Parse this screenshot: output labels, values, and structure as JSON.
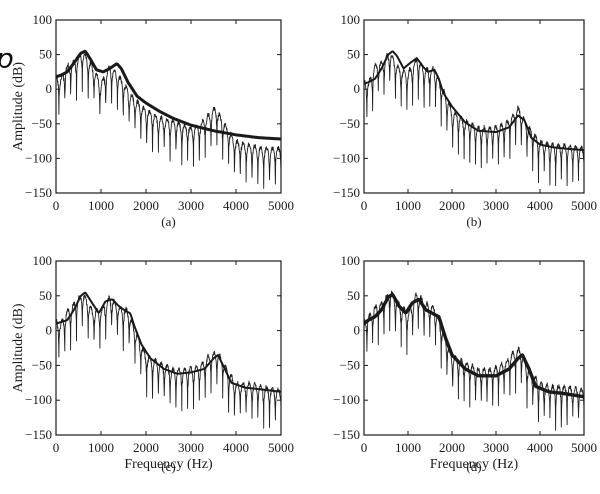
{
  "figure": {
    "stray_glyph": "p"
  },
  "chart_data": [
    {
      "type": "line",
      "caption": "(a)",
      "xlabel": "",
      "ylabel": "Amplitude (dB)",
      "xlim": [
        0,
        5000
      ],
      "ylim": [
        -150,
        100
      ],
      "xticks": [
        0,
        1000,
        2000,
        3000,
        4000,
        5000
      ],
      "yticks": [
        -150,
        -100,
        -50,
        0,
        50,
        100
      ],
      "series": [
        {
          "role": "spectrum",
          "x": [
            0,
            100,
            250,
            400,
            600,
            800,
            1000,
            1200,
            1350,
            1500,
            1700,
            2000,
            2300,
            2600,
            2800,
            3000,
            3200,
            3400,
            3550,
            3700,
            4000,
            4300,
            4600,
            5000
          ],
          "y": [
            10,
            5,
            25,
            30,
            45,
            25,
            0,
            25,
            15,
            0,
            -20,
            -40,
            -50,
            -55,
            -60,
            -65,
            -60,
            -45,
            -35,
            -55,
            -85,
            -90,
            -95,
            -95
          ]
        },
        {
          "role": "envelope",
          "x": [
            0,
            100,
            250,
            400,
            550,
            650,
            750,
            900,
            1050,
            1200,
            1350,
            1450,
            1600,
            1800,
            2000,
            2300,
            2600,
            3000,
            3500,
            4000,
            4500,
            5000
          ],
          "y": [
            18,
            20,
            25,
            38,
            52,
            55,
            45,
            28,
            25,
            30,
            37,
            30,
            10,
            -10,
            -20,
            -32,
            -42,
            -52,
            -60,
            -66,
            -70,
            -72
          ]
        }
      ]
    },
    {
      "type": "line",
      "caption": "(b)",
      "xlabel": "",
      "ylabel": "",
      "xlim": [
        0,
        5000
      ],
      "ylim": [
        -150,
        100
      ],
      "xticks": [
        0,
        1000,
        2000,
        3000,
        4000,
        5000
      ],
      "yticks": [
        -150,
        -100,
        -50,
        0,
        50,
        100
      ],
      "series": [
        {
          "role": "spectrum",
          "x": [
            0,
            100,
            250,
            400,
            600,
            800,
            1000,
            1200,
            1400,
            1600,
            1800,
            2000,
            2300,
            2600,
            2900,
            3200,
            3400,
            3500,
            3700,
            4000,
            4300,
            4600,
            5000
          ],
          "y": [
            5,
            0,
            25,
            30,
            45,
            20,
            15,
            35,
            20,
            20,
            -10,
            -40,
            -55,
            -65,
            -65,
            -60,
            -45,
            -35,
            -60,
            -85,
            -90,
            -90,
            -95
          ]
        },
        {
          "role": "envelope",
          "x": [
            0,
            100,
            250,
            400,
            550,
            650,
            750,
            900,
            1050,
            1200,
            1350,
            1450,
            1600,
            1700,
            1800,
            2000,
            2300,
            2600,
            3000,
            3300,
            3500,
            3650,
            3800,
            4000,
            4300,
            4600,
            5000
          ],
          "y": [
            8,
            10,
            15,
            30,
            50,
            55,
            48,
            30,
            38,
            45,
            32,
            25,
            28,
            15,
            -5,
            -25,
            -48,
            -60,
            -62,
            -55,
            -38,
            -45,
            -70,
            -80,
            -84,
            -86,
            -88
          ]
        }
      ]
    },
    {
      "type": "line",
      "caption": "(c)",
      "xlabel": "Frequency (Hz)",
      "ylabel": "Amplitude (dB)",
      "xlim": [
        0,
        5000
      ],
      "ylim": [
        -150,
        100
      ],
      "xticks": [
        0,
        1000,
        2000,
        3000,
        4000,
        5000
      ],
      "yticks": [
        -150,
        -100,
        -50,
        0,
        50,
        100
      ],
      "series": [
        {
          "role": "spectrum",
          "x": [
            0,
            100,
            250,
            400,
            600,
            800,
            1000,
            1200,
            1400,
            1600,
            1800,
            2000,
            2300,
            2600,
            2900,
            3200,
            3400,
            3600,
            3800,
            4000,
            4300,
            4600,
            5000
          ],
          "y": [
            5,
            0,
            20,
            30,
            45,
            20,
            20,
            40,
            25,
            20,
            -15,
            -45,
            -55,
            -65,
            -65,
            -60,
            -45,
            -40,
            -65,
            -85,
            -85,
            -90,
            -95
          ]
        },
        {
          "role": "envelope",
          "x": [
            0,
            100,
            250,
            400,
            550,
            650,
            800,
            950,
            1100,
            1250,
            1400,
            1550,
            1650,
            1750,
            1900,
            2100,
            2400,
            2700,
            3000,
            3300,
            3500,
            3600,
            3750,
            3900,
            4200,
            4500,
            5000
          ],
          "y": [
            10,
            12,
            15,
            30,
            50,
            55,
            40,
            25,
            42,
            45,
            35,
            28,
            25,
            5,
            -20,
            -40,
            -55,
            -62,
            -60,
            -55,
            -40,
            -35,
            -55,
            -75,
            -82,
            -84,
            -88
          ]
        }
      ]
    },
    {
      "type": "line",
      "caption": "(d)",
      "xlabel": "Frequency (Hz)",
      "ylabel": "",
      "xlim": [
        0,
        5000
      ],
      "ylim": [
        -150,
        100
      ],
      "xticks": [
        0,
        1000,
        2000,
        3000,
        4000,
        5000
      ],
      "yticks": [
        -150,
        -100,
        -50,
        0,
        50,
        100
      ],
      "series": [
        {
          "role": "spectrum",
          "x": [
            0,
            100,
            250,
            400,
            600,
            800,
            1000,
            1200,
            1400,
            1600,
            1800,
            2000,
            2300,
            2600,
            2900,
            3200,
            3400,
            3550,
            3700,
            4000,
            4300,
            4600,
            5000
          ],
          "y": [
            5,
            10,
            25,
            30,
            50,
            30,
            15,
            45,
            30,
            25,
            -10,
            -45,
            -55,
            -65,
            -65,
            -55,
            -40,
            -35,
            -60,
            -85,
            -90,
            -90,
            -95
          ]
        },
        {
          "role": "envelope",
          "x": [
            0,
            100,
            250,
            400,
            550,
            650,
            800,
            950,
            1100,
            1250,
            1400,
            1550,
            1700,
            1850,
            2000,
            2300,
            2600,
            3000,
            3300,
            3500,
            3600,
            3750,
            3900,
            4200,
            4500,
            5000
          ],
          "y": [
            10,
            15,
            20,
            30,
            48,
            52,
            35,
            25,
            40,
            45,
            30,
            25,
            20,
            -10,
            -35,
            -55,
            -65,
            -65,
            -55,
            -40,
            -35,
            -55,
            -80,
            -88,
            -90,
            -95
          ]
        }
      ]
    }
  ]
}
